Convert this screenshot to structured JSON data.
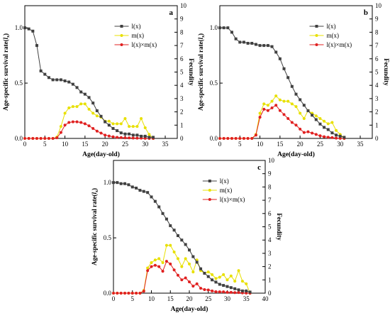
{
  "chart_data": [
    {
      "type": "line",
      "panel_label": "a",
      "xlabel": "Age(day-old)",
      "ylabel": "Age-specific survival rate(lx)",
      "ylabel_main": "Age-specific survival rate(",
      "ylabel_var": "l",
      "ylabel_sub": "x",
      "ylabel_end": ")",
      "y2label": "Fecundity",
      "xlim": [
        0,
        38
      ],
      "xticks": [
        0,
        5,
        10,
        15,
        20,
        25,
        30,
        35
      ],
      "ylim": [
        0,
        1.2
      ],
      "yticks": [
        0.0,
        0.5,
        1.0
      ],
      "y2lim": [
        0,
        10
      ],
      "y2ticks": [
        0,
        1,
        2,
        3,
        4,
        5,
        6,
        7,
        8,
        9,
        10
      ],
      "legend_position": "top-right",
      "series": [
        {
          "name": "l(x)",
          "axis": "left",
          "color": "#404040",
          "marker": "square",
          "x": [
            0,
            1,
            2,
            3,
            4,
            5,
            6,
            7,
            8,
            9,
            10,
            11,
            12,
            13,
            14,
            15,
            16,
            17,
            18,
            19,
            20,
            21,
            22,
            23,
            24,
            25,
            26,
            27,
            28,
            29,
            30,
            31,
            32
          ],
          "y": [
            1.0,
            0.99,
            0.97,
            0.84,
            0.61,
            0.58,
            0.55,
            0.53,
            0.53,
            0.53,
            0.52,
            0.51,
            0.49,
            0.46,
            0.42,
            0.4,
            0.37,
            0.32,
            0.25,
            0.2,
            0.15,
            0.12,
            0.09,
            0.07,
            0.05,
            0.04,
            0.04,
            0.03,
            0.03,
            0.02,
            0.02,
            0.01,
            0.01
          ]
        },
        {
          "name": "m(x)",
          "axis": "right",
          "color": "#e8e000",
          "marker": "circle",
          "x": [
            0,
            1,
            2,
            3,
            4,
            5,
            6,
            7,
            8,
            9,
            10,
            11,
            12,
            13,
            14,
            15,
            16,
            17,
            18,
            19,
            20,
            21,
            22,
            23,
            24,
            25,
            26,
            27,
            28,
            29,
            30,
            31,
            32
          ],
          "y": [
            0,
            0,
            0,
            0,
            0,
            0,
            0,
            0,
            0.1,
            0.9,
            1.9,
            2.3,
            2.4,
            2.4,
            2.6,
            2.6,
            2.2,
            1.9,
            1.7,
            1.6,
            1.3,
            1.3,
            1.1,
            1.1,
            1.1,
            1.5,
            0.9,
            0.9,
            0.9,
            1.5,
            0.8,
            0.3,
            0
          ]
        },
        {
          "name": "l(x)×m(x)",
          "axis": "right",
          "color": "#e02020",
          "marker": "circle",
          "x": [
            0,
            1,
            2,
            3,
            4,
            5,
            6,
            7,
            8,
            9,
            10,
            11,
            12,
            13,
            14,
            15,
            16,
            17,
            18,
            19,
            20,
            21,
            22,
            23,
            24,
            25,
            26,
            27,
            28,
            29,
            30,
            31,
            32
          ],
          "y": [
            0,
            0,
            0,
            0,
            0,
            0,
            0,
            0,
            0.05,
            0.45,
            1.0,
            1.2,
            1.25,
            1.25,
            1.2,
            1.1,
            0.95,
            0.75,
            0.55,
            0.4,
            0.25,
            0.18,
            0.12,
            0.08,
            0.06,
            0.05,
            0.04,
            0.03,
            0.02,
            0.02,
            0.01,
            0,
            0
          ]
        }
      ]
    },
    {
      "type": "line",
      "panel_label": "b",
      "xlabel": "Age(day-old)",
      "ylabel": "Age-specific survival rate(lx)",
      "ylabel_main": "Age-specific survival rate(",
      "ylabel_var": "l",
      "ylabel_sub": "x",
      "ylabel_end": ")",
      "y2label": "Fecundity",
      "xlim": [
        0,
        38
      ],
      "xticks": [
        0,
        5,
        10,
        15,
        20,
        25,
        30,
        35
      ],
      "ylim": [
        0,
        1.2
      ],
      "yticks": [
        0.0,
        0.5,
        1.0
      ],
      "y2lim": [
        0,
        10
      ],
      "y2ticks": [
        0,
        1,
        2,
        3,
        4,
        5,
        6,
        7,
        8,
        9,
        10
      ],
      "legend_position": "top-right",
      "series": [
        {
          "name": "l(x)",
          "axis": "left",
          "color": "#404040",
          "marker": "square",
          "x": [
            0,
            1,
            2,
            3,
            4,
            5,
            6,
            7,
            8,
            9,
            10,
            11,
            12,
            13,
            14,
            15,
            16,
            17,
            18,
            19,
            20,
            21,
            22,
            23,
            24,
            25,
            26,
            27,
            28,
            29,
            30,
            31
          ],
          "y": [
            1.0,
            1.0,
            1.0,
            0.96,
            0.9,
            0.87,
            0.87,
            0.86,
            0.86,
            0.85,
            0.84,
            0.84,
            0.84,
            0.83,
            0.78,
            0.72,
            0.63,
            0.55,
            0.47,
            0.4,
            0.35,
            0.3,
            0.25,
            0.21,
            0.17,
            0.13,
            0.1,
            0.08,
            0.05,
            0.03,
            0.02,
            0.01
          ]
        },
        {
          "name": "m(x)",
          "axis": "right",
          "color": "#e8e000",
          "marker": "circle",
          "x": [
            0,
            1,
            2,
            3,
            4,
            5,
            6,
            7,
            8,
            9,
            10,
            11,
            12,
            13,
            14,
            15,
            16,
            17,
            18,
            19,
            20,
            21,
            22,
            23,
            24,
            25,
            26,
            27,
            28,
            29,
            30,
            31
          ],
          "y": [
            0,
            0,
            0,
            0,
            0,
            0,
            0,
            0,
            0,
            0.3,
            1.9,
            2.6,
            2.5,
            2.8,
            3.2,
            2.9,
            2.8,
            2.8,
            2.6,
            2.4,
            1.9,
            1.5,
            2.1,
            1.9,
            1.7,
            1.5,
            1.3,
            1.1,
            1.2,
            0.6,
            0.3,
            0
          ]
        },
        {
          "name": "l(x)×m(x)",
          "axis": "right",
          "color": "#e02020",
          "marker": "circle",
          "x": [
            0,
            1,
            2,
            3,
            4,
            5,
            6,
            7,
            8,
            9,
            10,
            11,
            12,
            13,
            14,
            15,
            16,
            17,
            18,
            19,
            20,
            21,
            22,
            23,
            24,
            25,
            26,
            27,
            28,
            29,
            30,
            31
          ],
          "y": [
            0,
            0,
            0,
            0,
            0,
            0,
            0,
            0,
            0,
            0.25,
            1.6,
            2.2,
            2.1,
            2.3,
            2.5,
            2.1,
            1.8,
            1.5,
            1.2,
            1.0,
            0.7,
            0.45,
            0.5,
            0.4,
            0.3,
            0.2,
            0.13,
            0.09,
            0.06,
            0.02,
            0.01,
            0
          ]
        }
      ]
    },
    {
      "type": "line",
      "panel_label": "c",
      "xlabel": "Age(day-old)",
      "ylabel": "Age-specific survival rate(lx)",
      "ylabel_main": "Age-specific survival rate(",
      "ylabel_var": "l",
      "ylabel_sub": "x",
      "ylabel_end": ")",
      "y2label": "Fecundity",
      "xlim": [
        0,
        40
      ],
      "xticks": [
        0,
        5,
        10,
        15,
        20,
        25,
        30,
        35,
        40
      ],
      "ylim": [
        0,
        1.2
      ],
      "yticks": [
        0.0,
        0.5,
        1.0
      ],
      "y2lim": [
        0,
        10
      ],
      "y2ticks": [
        0,
        1,
        2,
        3,
        4,
        5,
        6,
        7,
        8,
        9,
        10
      ],
      "legend_position": "top-right",
      "series": [
        {
          "name": "l(x)",
          "axis": "left",
          "color": "#404040",
          "marker": "square",
          "x": [
            0,
            1,
            2,
            3,
            4,
            5,
            6,
            7,
            8,
            9,
            10,
            11,
            12,
            13,
            14,
            15,
            16,
            17,
            18,
            19,
            20,
            21,
            22,
            23,
            24,
            25,
            26,
            27,
            28,
            29,
            30,
            31,
            32,
            33,
            34,
            35,
            36
          ],
          "y": [
            1.0,
            1.0,
            0.99,
            0.99,
            0.98,
            0.96,
            0.95,
            0.93,
            0.92,
            0.91,
            0.87,
            0.83,
            0.78,
            0.72,
            0.67,
            0.61,
            0.57,
            0.52,
            0.48,
            0.44,
            0.39,
            0.33,
            0.28,
            0.22,
            0.18,
            0.15,
            0.12,
            0.1,
            0.08,
            0.07,
            0.06,
            0.05,
            0.04,
            0.03,
            0.02,
            0.02,
            0.01
          ]
        },
        {
          "name": "m(x)",
          "axis": "right",
          "color": "#e8e000",
          "marker": "circle",
          "x": [
            0,
            1,
            2,
            3,
            4,
            5,
            6,
            7,
            8,
            9,
            10,
            11,
            12,
            13,
            14,
            15,
            16,
            17,
            18,
            19,
            20,
            21,
            22,
            23,
            24,
            25,
            26,
            27,
            28,
            29,
            30,
            31,
            32,
            33,
            34,
            35,
            36
          ],
          "y": [
            0,
            0,
            0,
            0,
            0,
            0,
            0,
            0,
            0.2,
            1.9,
            2.3,
            2.5,
            2.6,
            2.3,
            3.6,
            3.6,
            3.1,
            2.6,
            2.0,
            2.6,
            2.2,
            1.6,
            2.5,
            1.7,
            1.5,
            1.6,
            1.4,
            1.1,
            1.2,
            1.4,
            1.0,
            1.3,
            0.9,
            1.7,
            0.9,
            0.7,
            0
          ]
        },
        {
          "name": "l(x)×m(x)",
          "axis": "right",
          "color": "#e02020",
          "marker": "circle",
          "x": [
            0,
            1,
            2,
            3,
            4,
            5,
            6,
            7,
            8,
            9,
            10,
            11,
            12,
            13,
            14,
            15,
            16,
            17,
            18,
            19,
            20,
            21,
            22,
            23,
            24,
            25,
            26,
            27,
            28,
            29,
            30,
            31,
            32,
            33,
            34,
            35,
            36
          ],
          "y": [
            0,
            0,
            0,
            0,
            0,
            0,
            0,
            0,
            0.15,
            1.7,
            2.0,
            2.1,
            2.0,
            1.65,
            2.4,
            2.2,
            1.75,
            1.35,
            1.0,
            1.15,
            0.85,
            0.53,
            0.7,
            0.37,
            0.27,
            0.24,
            0.17,
            0.11,
            0.1,
            0.1,
            0.06,
            0.06,
            0.04,
            0.05,
            0.02,
            0.01,
            0
          ]
        }
      ]
    }
  ]
}
